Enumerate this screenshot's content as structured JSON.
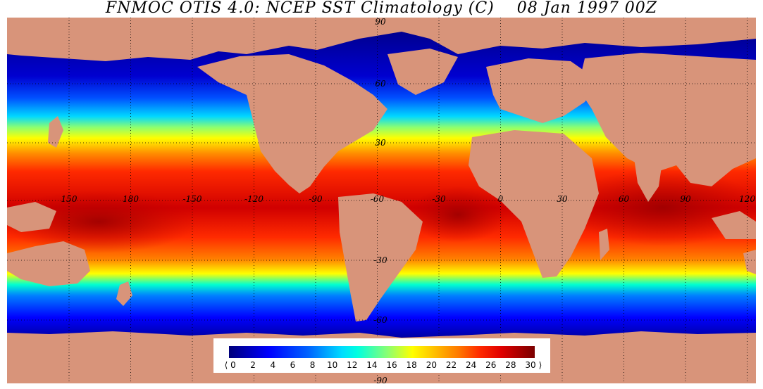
{
  "title": "FNMOC OTIS 4.0: NCEP SST Climatology (C)    08 Jan 1997 00Z",
  "colors": {
    "land": "#d8947a",
    "deep_cold": "#00007a",
    "warm_core": "#b40000",
    "grid": "#000000"
  },
  "longitude_labels": [
    "150",
    "180",
    "-150",
    "-120",
    "-90",
    "-60",
    "-30",
    "0",
    "30",
    "60",
    "90",
    "120"
  ],
  "latitude_labels": [
    "90",
    "60",
    "30",
    "-30",
    "-60",
    "-90"
  ],
  "legend": {
    "ticks": [
      "0",
      "2",
      "4",
      "6",
      "8",
      "10",
      "12",
      "14",
      "16",
      "18",
      "20",
      "22",
      "24",
      "26",
      "28",
      "30"
    ],
    "left_marker": "⟨",
    "right_marker": "⟩",
    "range": [
      0,
      30
    ]
  }
}
